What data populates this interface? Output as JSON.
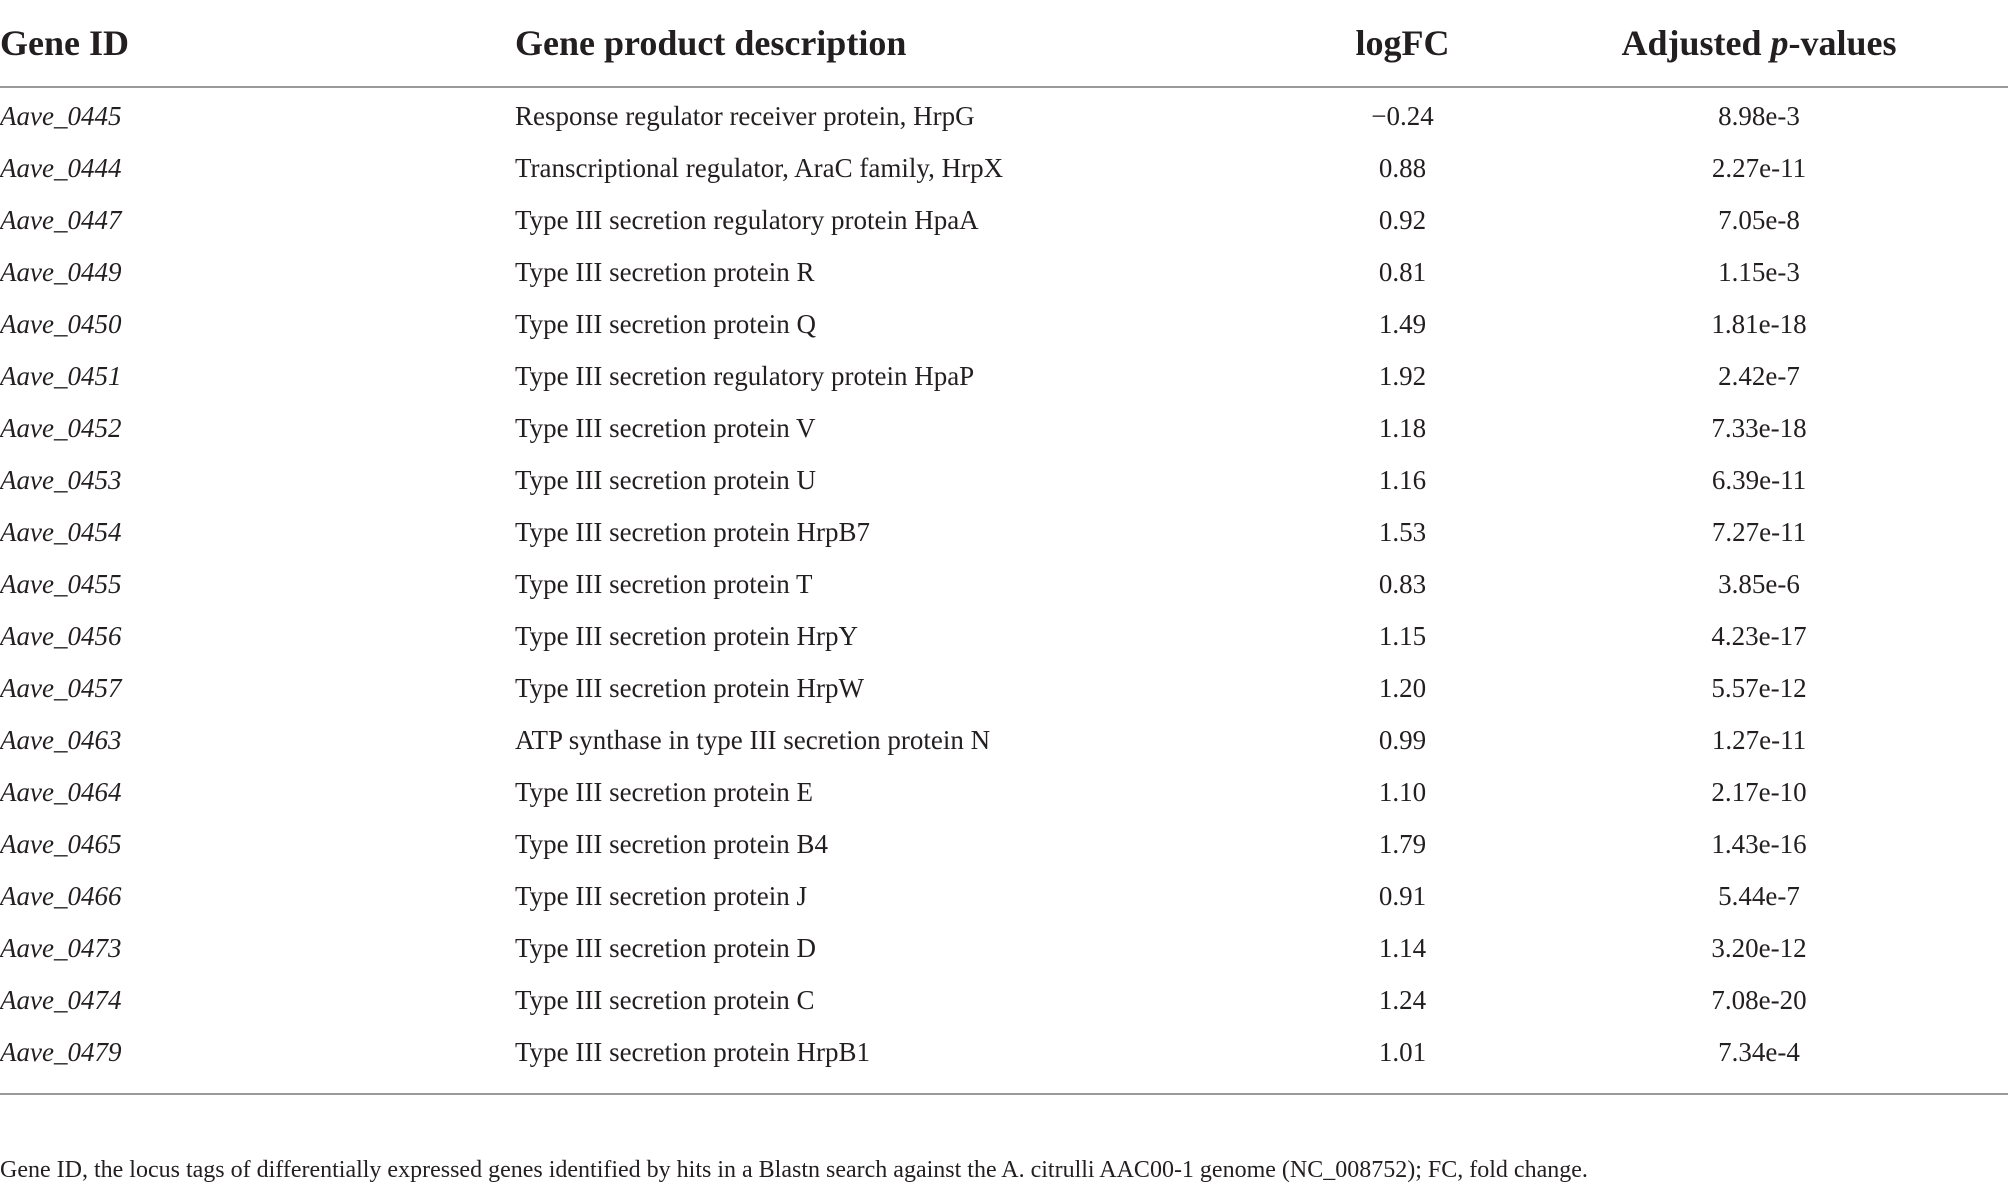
{
  "table": {
    "headers": {
      "gene_id": "Gene ID",
      "description": "Gene product description",
      "logfc": "logFC",
      "padj_prefix": "Adjusted ",
      "padj_italic": "p",
      "padj_suffix": "-values"
    },
    "rows": [
      {
        "gene_id": "Aave_0445",
        "description": "Response regulator receiver protein, HrpG",
        "logfc": "−0.24",
        "padj": "8.98e-3"
      },
      {
        "gene_id": "Aave_0444",
        "description": "Transcriptional regulator, AraC family, HrpX",
        "logfc": "0.88",
        "padj": "2.27e-11"
      },
      {
        "gene_id": "Aave_0447",
        "description": "Type III secretion regulatory protein HpaA",
        "logfc": "0.92",
        "padj": "7.05e-8"
      },
      {
        "gene_id": "Aave_0449",
        "description": "Type III secretion protein R",
        "logfc": "0.81",
        "padj": "1.15e-3"
      },
      {
        "gene_id": "Aave_0450",
        "description": "Type III secretion protein Q",
        "logfc": "1.49",
        "padj": "1.81e-18"
      },
      {
        "gene_id": "Aave_0451",
        "description": "Type III secretion regulatory protein HpaP",
        "logfc": "1.92",
        "padj": "2.42e-7"
      },
      {
        "gene_id": "Aave_0452",
        "description": "Type III secretion protein V",
        "logfc": "1.18",
        "padj": "7.33e-18"
      },
      {
        "gene_id": "Aave_0453",
        "description": "Type III secretion protein U",
        "logfc": "1.16",
        "padj": "6.39e-11"
      },
      {
        "gene_id": "Aave_0454",
        "description": "Type III secretion protein HrpB7",
        "logfc": "1.53",
        "padj": "7.27e-11"
      },
      {
        "gene_id": "Aave_0455",
        "description": "Type III secretion protein T",
        "logfc": "0.83",
        "padj": "3.85e-6"
      },
      {
        "gene_id": "Aave_0456",
        "description": "Type III secretion protein HrpY",
        "logfc": "1.15",
        "padj": "4.23e-17"
      },
      {
        "gene_id": "Aave_0457",
        "description": "Type III secretion protein HrpW",
        "logfc": "1.20",
        "padj": "5.57e-12"
      },
      {
        "gene_id": "Aave_0463",
        "description": "ATP synthase in type III secretion protein N",
        "logfc": "0.99",
        "padj": "1.27e-11"
      },
      {
        "gene_id": "Aave_0464",
        "description": "Type III secretion protein E",
        "logfc": "1.10",
        "padj": "2.17e-10"
      },
      {
        "gene_id": "Aave_0465",
        "description": "Type III secretion protein B4",
        "logfc": "1.79",
        "padj": "1.43e-16"
      },
      {
        "gene_id": "Aave_0466",
        "description": "Type III secretion protein J",
        "logfc": "0.91",
        "padj": "5.44e-7"
      },
      {
        "gene_id": "Aave_0473",
        "description": "Type III secretion protein D",
        "logfc": "1.14",
        "padj": "3.20e-12"
      },
      {
        "gene_id": "Aave_0474",
        "description": "Type III secretion protein C",
        "logfc": "1.24",
        "padj": "7.08e-20"
      },
      {
        "gene_id": "Aave_0479",
        "description": "Type III secretion protein HrpB1",
        "logfc": "1.01",
        "padj": "7.34e-4"
      }
    ]
  },
  "footnote": "Gene ID, the locus tags of differentially expressed genes identified by hits in a Blastn search against the A. citrulli AAC00-1 genome (NC_008752); FC, fold change."
}
